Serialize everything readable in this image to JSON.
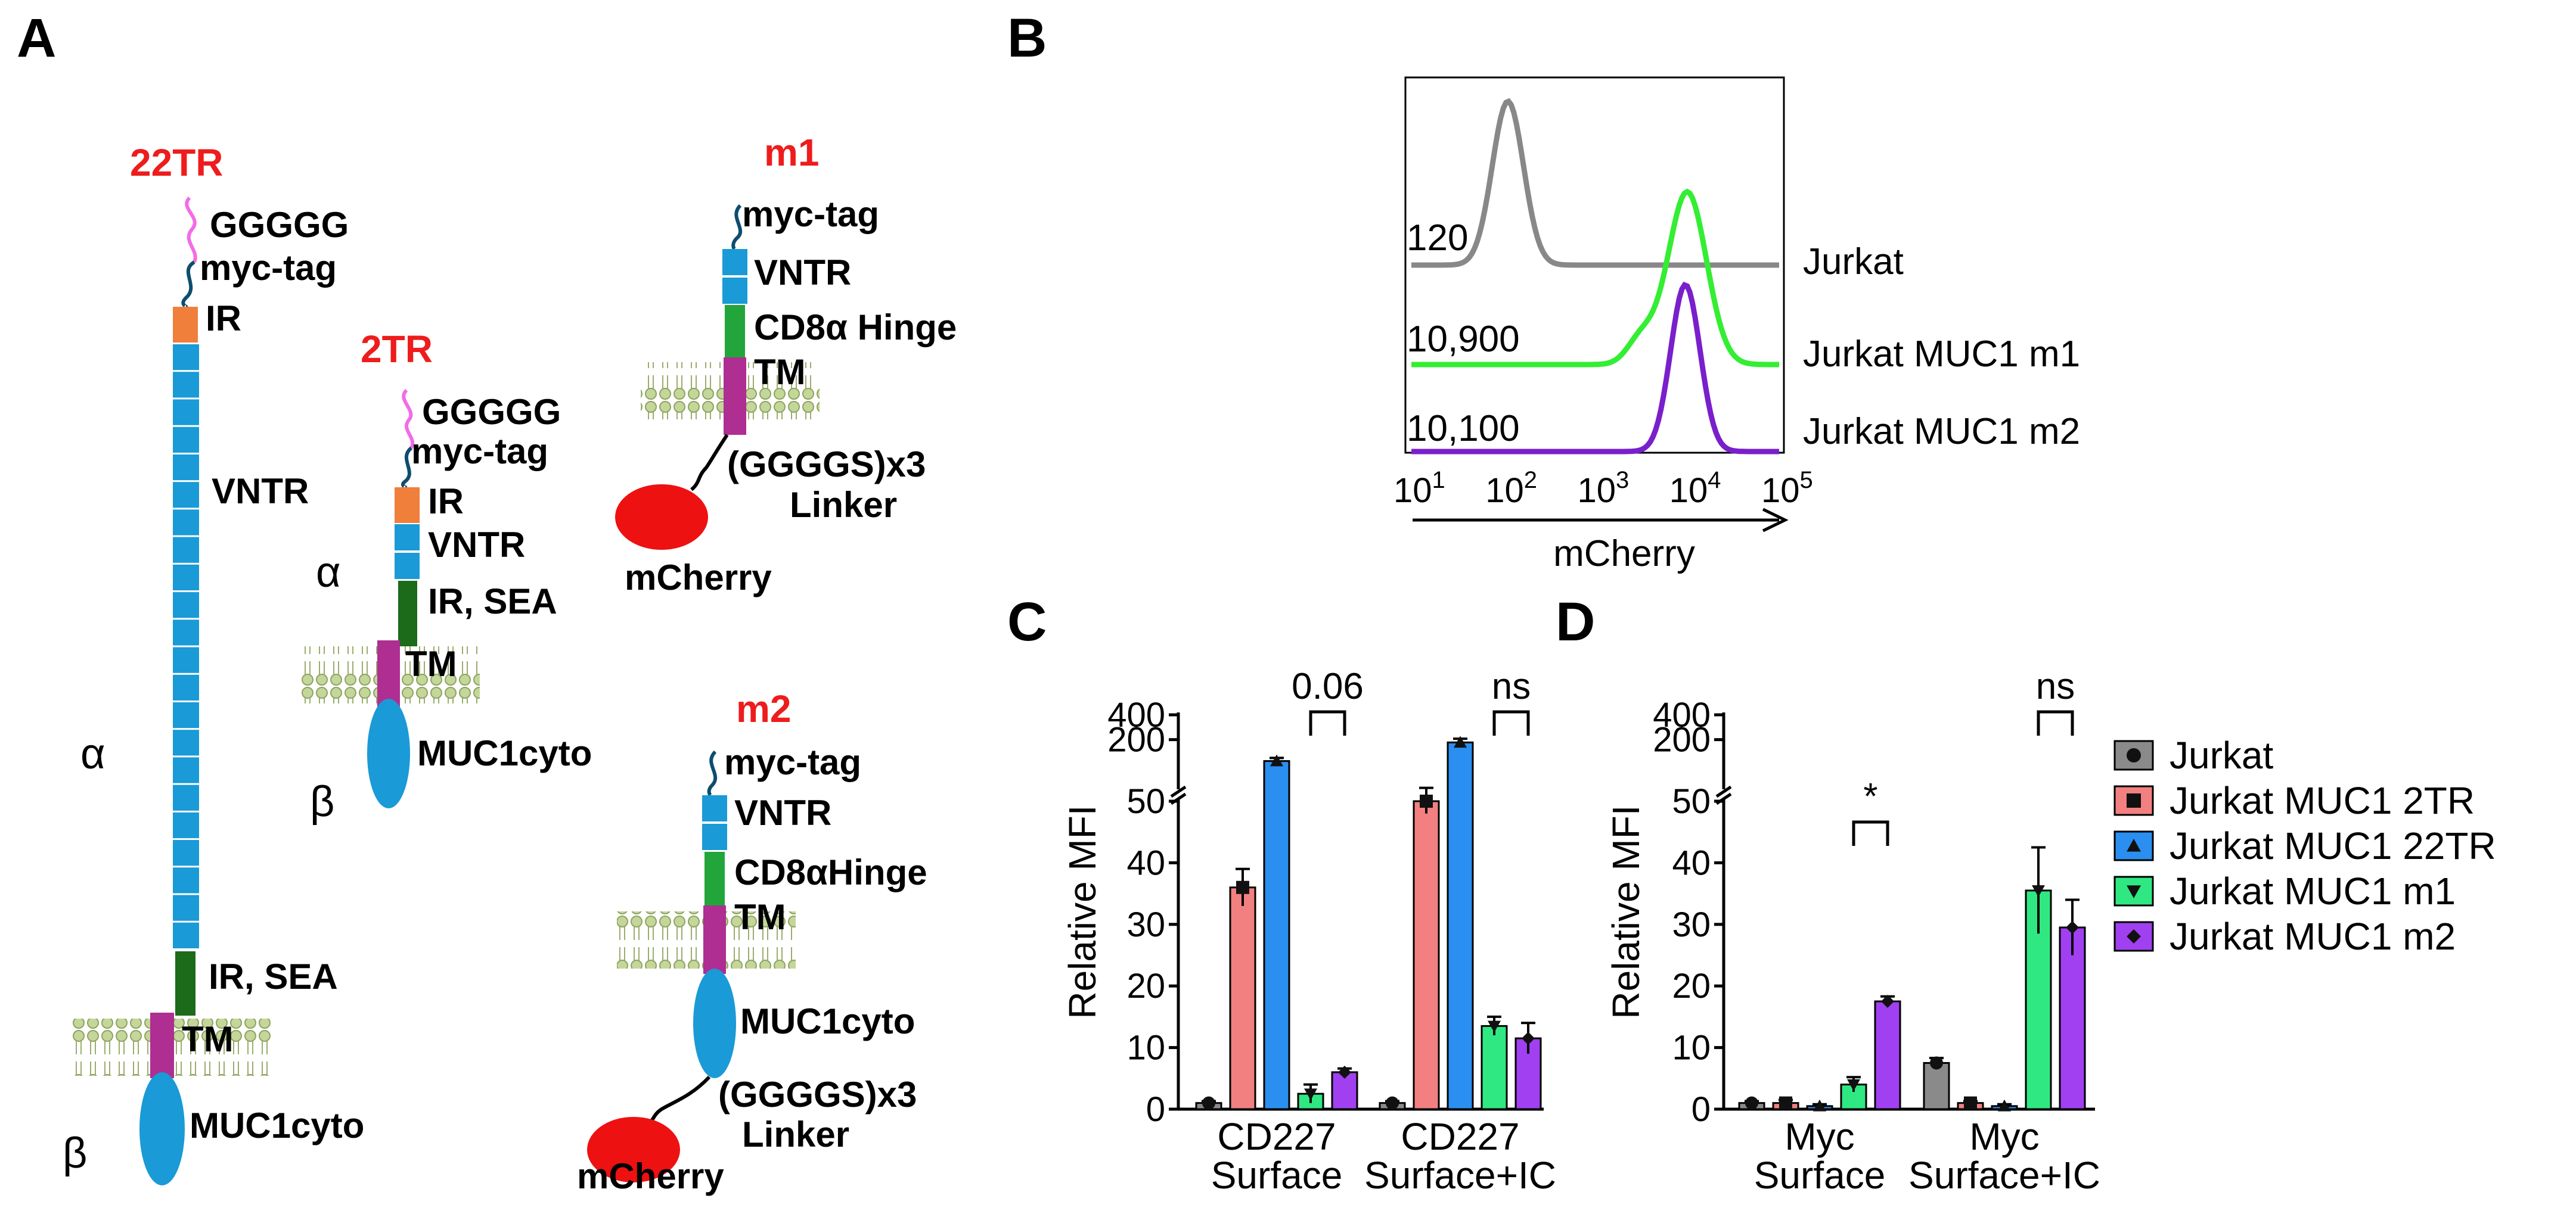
{
  "panel_labels": {
    "a": "A",
    "b": "B",
    "c": "C",
    "d": "D"
  },
  "colors": {
    "red_label": "#ee1c1c",
    "vntr_blue": "#1a9ad6",
    "ir_orange": "#f07f3c",
    "pink_linker": "#f36be7",
    "dark_green": "#1b6b1b",
    "green_hinge": "#22a53a",
    "tm_magenta": "#ae2e92",
    "membrane": "#b5c98c",
    "mcherry": "#ee1111",
    "jurkat_gray": "#888888",
    "m1_green": "#33ee33",
    "m2_purple": "#7a1fcc",
    "bar_2tr": "#f28080",
    "bar_22tr": "#2a8ff0",
    "bar_m1": "#2fe882",
    "bar_m2": "#a040f0"
  },
  "panel_a": {
    "c22tr": {
      "title": "22TR",
      "linker": "GGGGG",
      "myc": "myc-tag",
      "ir": "IR",
      "vntr": "VNTR",
      "alpha": "α",
      "ir_sea": "IR, SEA",
      "tm": "TM",
      "beta": "β",
      "cyto": "MUC1cyto"
    },
    "c2tr": {
      "title": "2TR",
      "linker": "GGGGG",
      "myc": "myc-tag",
      "ir": "IR",
      "vntr": "VNTR",
      "alpha": "α",
      "ir_sea": "IR, SEA",
      "tm": "TM",
      "beta": "β",
      "cyto": "MUC1cyto"
    },
    "m1": {
      "title": "m1",
      "myc": "myc-tag",
      "vntr": "VNTR",
      "hinge": "CD8α Hinge",
      "tm": "TM",
      "linker1": "(GGGGS)x3",
      "linker2": "Linker",
      "fp": "mCherry"
    },
    "m2": {
      "title": "m2",
      "myc": "myc-tag",
      "vntr": "VNTR",
      "hinge": "CD8αHinge",
      "tm": "TM",
      "cyto": "MUC1cyto",
      "linker1": "(GGGGS)x3",
      "linker2": "Linker",
      "fp": "mCherry"
    }
  },
  "panel_b": {
    "chart_data": {
      "type": "histogram",
      "xlabel": "mCherry",
      "x_scale": "log10",
      "xlim": [
        10,
        100000
      ],
      "x_ticks": [
        {
          "base": "10",
          "exp": "1"
        },
        {
          "base": "10",
          "exp": "2"
        },
        {
          "base": "10",
          "exp": "3"
        },
        {
          "base": "10",
          "exp": "4"
        },
        {
          "base": "10",
          "exp": "5"
        }
      ],
      "series": [
        {
          "name": "Jurkat",
          "mfi": "120",
          "peak_log10": 2.05
        },
        {
          "name": "Jurkat MUC1 m1",
          "mfi": "10,900",
          "peak_log10": 4.0
        },
        {
          "name": "Jurkat MUC1 m2",
          "mfi": "10,100",
          "peak_log10": 3.98
        }
      ]
    }
  },
  "panel_c": {
    "chart_data": {
      "type": "bar",
      "ylabel": "Relative MFI",
      "y_lower_ticks": [
        "0",
        "10",
        "20",
        "30",
        "40",
        "50"
      ],
      "y_upper_ticks": [
        "200",
        "400"
      ],
      "ylim_lower": [
        0,
        50
      ],
      "ylim_upper": [
        50,
        400
      ],
      "categories": [
        {
          "line1": "CD227",
          "line2": "Surface"
        },
        {
          "line1": "CD227",
          "line2": "Surface+IC"
        }
      ],
      "series": [
        {
          "name": "Jurkat",
          "values": [
            1,
            1
          ],
          "err": [
            0.3,
            0.3
          ]
        },
        {
          "name": "Jurkat MUC1 2TR",
          "values": [
            36,
            50
          ],
          "err": [
            3,
            2
          ]
        },
        {
          "name": "Jurkat MUC1 22TR",
          "values": [
            110,
            185
          ],
          "err": [
            10,
            20
          ]
        },
        {
          "name": "Jurkat MUC1 m1",
          "values": [
            2.5,
            13.5
          ],
          "err": [
            1.5,
            1.5
          ]
        },
        {
          "name": "Jurkat MUC1 m2",
          "values": [
            6,
            11.5
          ],
          "err": [
            0.6,
            2.5
          ]
        }
      ],
      "annotations": [
        {
          "text": "0.06"
        },
        {
          "text": "ns"
        }
      ]
    }
  },
  "panel_d": {
    "chart_data": {
      "type": "bar",
      "ylabel": "Relative MFI",
      "y_lower_ticks": [
        "0",
        "10",
        "20",
        "30",
        "40",
        "50"
      ],
      "y_upper_ticks": [
        "200",
        "400"
      ],
      "ylim_lower": [
        0,
        50
      ],
      "ylim_upper": [
        50,
        400
      ],
      "categories": [
        {
          "line1": "Myc",
          "line2": "Surface"
        },
        {
          "line1": "Myc",
          "line2": "Surface+IC"
        }
      ],
      "series": [
        {
          "name": "Jurkat",
          "values": [
            1,
            7.5
          ],
          "err": [
            0.3,
            0.8
          ]
        },
        {
          "name": "Jurkat MUC1 2TR",
          "values": [
            1,
            1
          ],
          "err": [
            0.5,
            0.3
          ]
        },
        {
          "name": "Jurkat MUC1 22TR",
          "values": [
            0.5,
            0.5
          ],
          "err": [
            0.3,
            0.3
          ]
        },
        {
          "name": "Jurkat MUC1 m1",
          "values": [
            4,
            35.5
          ],
          "err": [
            1.2,
            7
          ]
        },
        {
          "name": "Jurkat MUC1 m2",
          "values": [
            17.5,
            29.5
          ],
          "err": [
            0.8,
            4.5
          ]
        }
      ],
      "annotations": [
        {
          "text": "*"
        },
        {
          "text": "ns"
        }
      ]
    }
  },
  "legend": {
    "items": [
      {
        "name": "Jurkat",
        "color": "#8a8a8a",
        "marker": "circle"
      },
      {
        "name": "Jurkat MUC1 2TR",
        "color": "#f28080",
        "marker": "square"
      },
      {
        "name": "Jurkat MUC1 22TR",
        "color": "#2a8ff0",
        "marker": "triangle-up"
      },
      {
        "name": "Jurkat MUC1 m1",
        "color": "#2fe882",
        "marker": "triangle-down"
      },
      {
        "name": "Jurkat MUC1 m2",
        "color": "#a040f0",
        "marker": "diamond"
      }
    ]
  }
}
